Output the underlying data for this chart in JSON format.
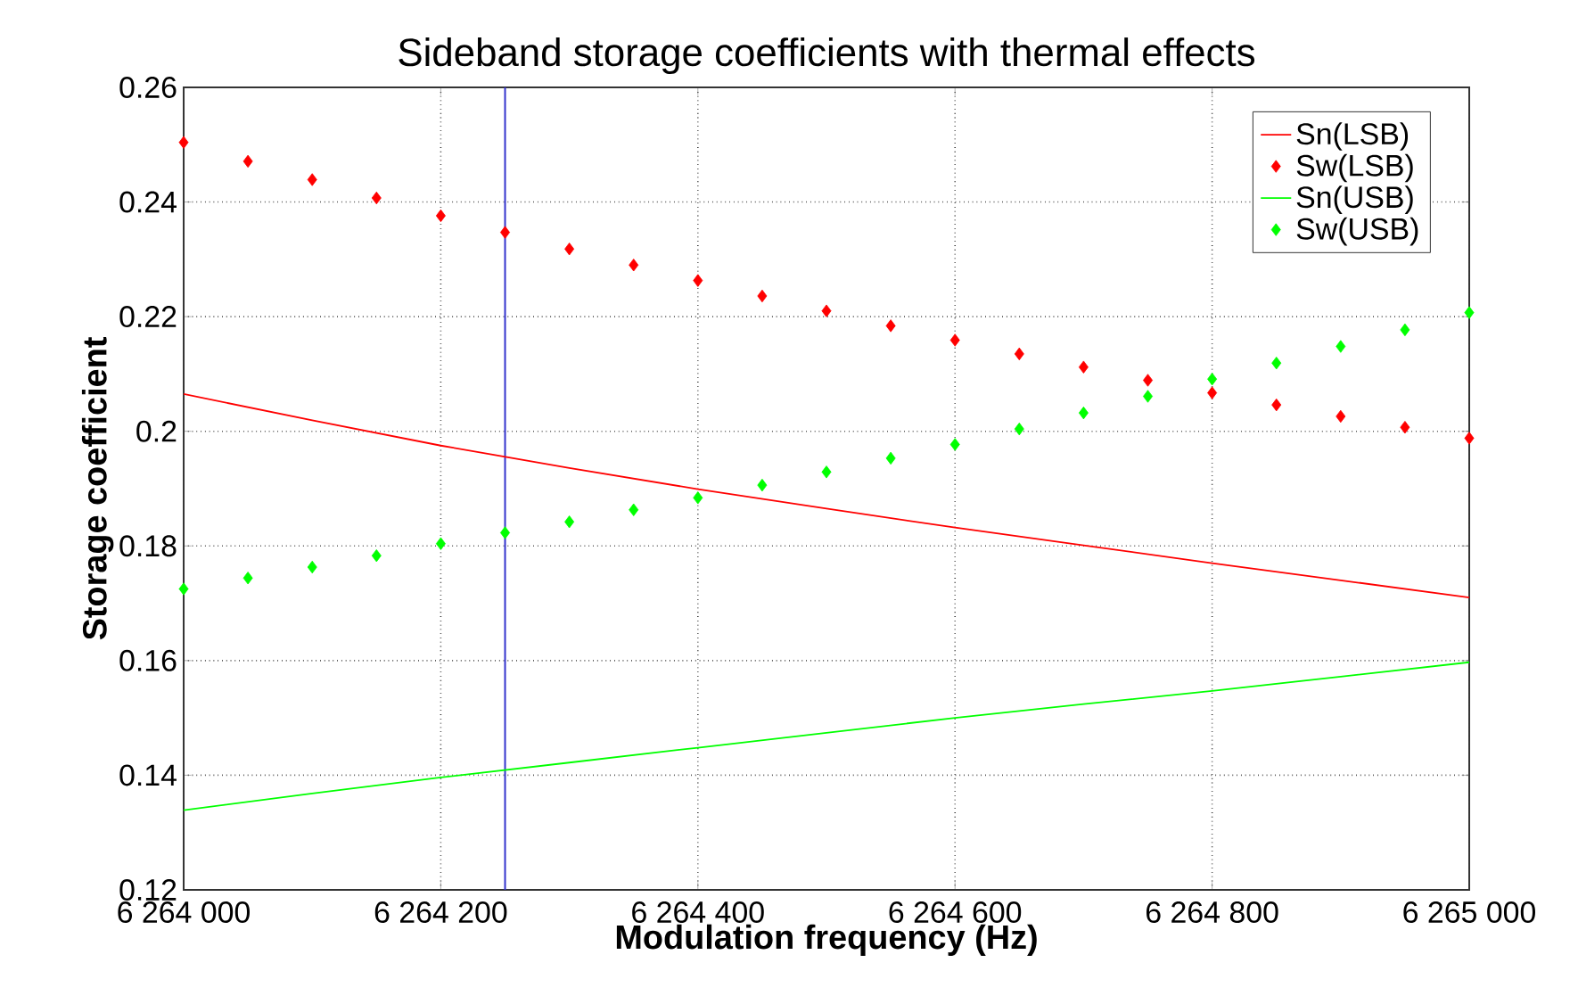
{
  "chart_data": {
    "type": "line",
    "title": "Sideband storage coefficients with thermal effects",
    "xlabel": "Modulation frequency (Hz)",
    "ylabel": "Storage coefficient",
    "xlim": [
      6264000,
      6265000
    ],
    "ylim": [
      0.12,
      0.26
    ],
    "xticks": [
      {
        "value": 6264000,
        "label": "6 264 000"
      },
      {
        "value": 6264200,
        "label": "6 264 200"
      },
      {
        "value": 6264400,
        "label": "6 264 400"
      },
      {
        "value": 6264600,
        "label": "6 264 600"
      },
      {
        "value": 6264800,
        "label": "6 264 800"
      },
      {
        "value": 6265000,
        "label": "6 265 000"
      }
    ],
    "yticks": [
      0.12,
      0.14,
      0.16,
      0.18,
      0.2,
      0.22,
      0.24,
      0.26
    ],
    "grid": true,
    "legend": "top right",
    "ref_lines": [
      {
        "axis": "x",
        "value": 6264250,
        "color": "#3333cc"
      }
    ],
    "series": [
      {
        "name": "Sn(LSB)",
        "color": "#ff0000",
        "x": [
          6264000,
          6264100,
          6264200,
          6264300,
          6264400,
          6264500,
          6264600,
          6264700,
          6264800,
          6264900,
          6265000
        ],
        "values": [
          0.2065,
          0.2019,
          0.1975,
          0.1936,
          0.1899,
          0.1865,
          0.1832,
          0.1801,
          0.177,
          0.174,
          0.171
        ]
      },
      {
        "name": "Sw(LSB)",
        "type": "scatter",
        "marker": "diamond",
        "color": "#ff0000",
        "x": [
          6264000,
          6264050,
          6264100,
          6264150,
          6264200,
          6264250,
          6264300,
          6264350,
          6264400,
          6264450,
          6264500,
          6264550,
          6264600,
          6264650,
          6264700,
          6264750,
          6264800,
          6264850,
          6264900,
          6264950,
          6265000
        ],
        "values": [
          0.2504,
          0.2471,
          0.2439,
          0.2407,
          0.2376,
          0.2347,
          0.2318,
          0.229,
          0.2263,
          0.2236,
          0.221,
          0.2184,
          0.2159,
          0.2135,
          0.2112,
          0.2089,
          0.2067,
          0.2046,
          0.2026,
          0.2007,
          0.1988
        ]
      },
      {
        "name": "Sn(USB)",
        "color": "#00ff00",
        "x": [
          6264000,
          6264100,
          6264200,
          6264300,
          6264400,
          6264500,
          6264600,
          6264700,
          6264800,
          6264900,
          6265000
        ],
        "values": [
          0.1339,
          0.1368,
          0.1396,
          0.1422,
          0.1448,
          0.1474,
          0.15,
          0.1524,
          0.1547,
          0.1572,
          0.1597
        ]
      },
      {
        "name": "Sw(USB)",
        "type": "scatter",
        "marker": "diamond",
        "color": "#00ff00",
        "x": [
          6264000,
          6264050,
          6264100,
          6264150,
          6264200,
          6264250,
          6264300,
          6264350,
          6264400,
          6264450,
          6264500,
          6264550,
          6264600,
          6264650,
          6264700,
          6264750,
          6264800,
          6264850,
          6264900,
          6264950,
          6265000
        ],
        "values": [
          0.1725,
          0.1744,
          0.1763,
          0.1783,
          0.1804,
          0.1823,
          0.1842,
          0.1863,
          0.1884,
          0.1906,
          0.1929,
          0.1953,
          0.1977,
          0.2004,
          0.2032,
          0.2061,
          0.2091,
          0.2119,
          0.2148,
          0.2177,
          0.2207
        ]
      }
    ]
  }
}
